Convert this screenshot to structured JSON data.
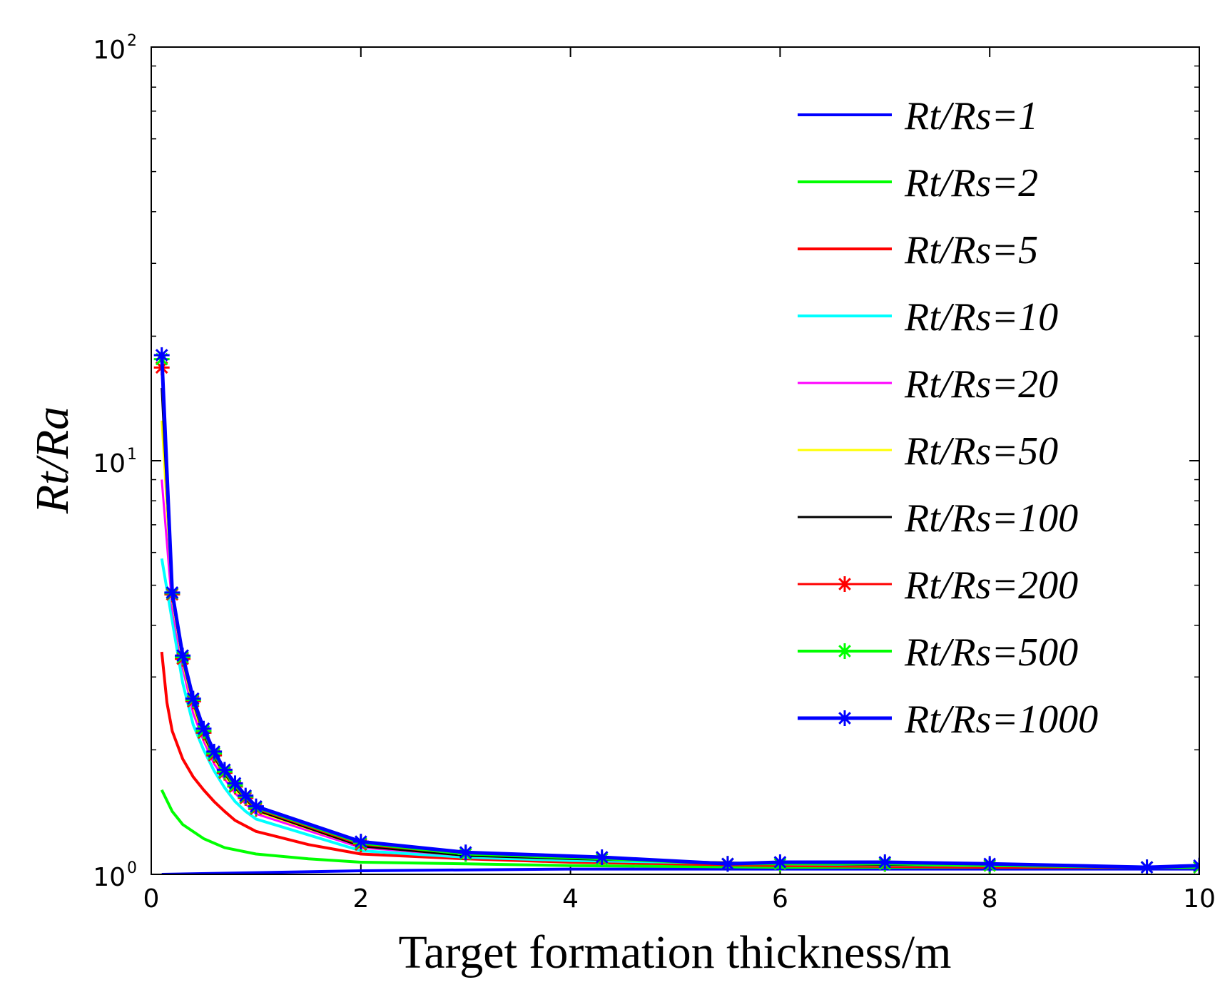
{
  "chart_data": {
    "type": "line",
    "title": "",
    "xlabel": "Target formation thickness/m",
    "ylabel": "Rt/Ra",
    "xlim": [
      0,
      10
    ],
    "ylim": [
      1,
      100
    ],
    "yscale": "log",
    "grid": false,
    "legend_position": "top-right",
    "x_ticks": [
      "0",
      "2",
      "4",
      "6",
      "8",
      "10"
    ],
    "y_ticks": [
      {
        "base": "10",
        "exp": "0"
      },
      {
        "base": "10",
        "exp": "1"
      },
      {
        "base": "10",
        "exp": "2"
      }
    ],
    "series": [
      {
        "name": "Rt/Rs=1",
        "color": "#0000ff",
        "marker": "none",
        "stroke": 4,
        "x": [
          0.1,
          2,
          4,
          6,
          8,
          10
        ],
        "y": [
          1.0,
          1.02,
          1.03,
          1.03,
          1.03,
          1.03
        ]
      },
      {
        "name": "Rt/Rs=2",
        "color": "#00ff00",
        "marker": "none",
        "stroke": 4,
        "x": [
          0.1,
          0.2,
          0.3,
          0.5,
          0.7,
          1.0,
          1.5,
          2,
          3,
          4,
          6,
          8,
          10
        ],
        "y": [
          1.6,
          1.42,
          1.32,
          1.22,
          1.16,
          1.12,
          1.09,
          1.07,
          1.06,
          1.05,
          1.04,
          1.04,
          1.04
        ]
      },
      {
        "name": "Rt/Rs=5",
        "color": "#ff0000",
        "marker": "none",
        "stroke": 4,
        "x": [
          0.1,
          0.15,
          0.2,
          0.3,
          0.4,
          0.5,
          0.6,
          0.7,
          0.8,
          1.0,
          1.5,
          2,
          3,
          4,
          6,
          8,
          10
        ],
        "y": [
          3.45,
          2.6,
          2.22,
          1.9,
          1.72,
          1.6,
          1.5,
          1.42,
          1.35,
          1.27,
          1.18,
          1.12,
          1.09,
          1.07,
          1.05,
          1.04,
          1.04
        ]
      },
      {
        "name": "Rt/Rs=10",
        "color": "#00ffff",
        "marker": "none",
        "stroke": 4,
        "x": [
          0.1,
          0.2,
          0.3,
          0.4,
          0.5,
          0.6,
          0.7,
          0.8,
          0.9,
          1.0,
          2,
          3,
          4,
          6,
          8,
          10
        ],
        "y": [
          5.8,
          4.1,
          2.9,
          2.3,
          2.0,
          1.78,
          1.62,
          1.5,
          1.42,
          1.36,
          1.14,
          1.1,
          1.08,
          1.06,
          1.05,
          1.04
        ]
      },
      {
        "name": "Rt/Rs=20",
        "color": "#ff00ff",
        "marker": "none",
        "stroke": 3,
        "x": [
          0.1,
          0.2,
          0.3,
          0.4,
          0.5,
          0.6,
          0.7,
          0.8,
          0.9,
          1.0,
          2,
          3,
          4,
          6,
          8,
          10
        ],
        "y": [
          9.0,
          4.4,
          3.15,
          2.45,
          2.1,
          1.85,
          1.7,
          1.57,
          1.48,
          1.4,
          1.16,
          1.11,
          1.09,
          1.06,
          1.05,
          1.04
        ]
      },
      {
        "name": "Rt/Rs=50",
        "color": "#ffff00",
        "marker": "none",
        "stroke": 3,
        "x": [
          0.1,
          0.2,
          0.3,
          0.4,
          0.5,
          0.6,
          0.7,
          0.8,
          0.9,
          1.0,
          2,
          3,
          4,
          6,
          8,
          10
        ],
        "y": [
          12.5,
          4.6,
          3.25,
          2.55,
          2.15,
          1.9,
          1.73,
          1.6,
          1.5,
          1.42,
          1.17,
          1.11,
          1.09,
          1.06,
          1.05,
          1.04
        ]
      },
      {
        "name": "Rt/Rs=100",
        "color": "#000000",
        "marker": "none",
        "stroke": 3,
        "x": [
          0.1,
          0.2,
          0.3,
          0.4,
          0.5,
          0.6,
          0.7,
          0.8,
          0.9,
          1.0,
          2,
          3,
          4,
          6,
          8,
          10
        ],
        "y": [
          15.0,
          4.7,
          3.3,
          2.6,
          2.18,
          1.92,
          1.75,
          1.62,
          1.52,
          1.43,
          1.17,
          1.11,
          1.09,
          1.06,
          1.05,
          1.04
        ]
      },
      {
        "name": "Rt/Rs=200",
        "color": "#ff0000",
        "marker": "star",
        "stroke": 3,
        "x": [
          0.1,
          0.2,
          0.3,
          0.4,
          0.5,
          0.6,
          0.7,
          0.8,
          0.9,
          1.0,
          2,
          3,
          4.3,
          5.5,
          6,
          7,
          8,
          9.5,
          10
        ],
        "y": [
          16.8,
          4.75,
          3.32,
          2.62,
          2.2,
          1.94,
          1.76,
          1.63,
          1.53,
          1.44,
          1.18,
          1.12,
          1.09,
          1.06,
          1.06,
          1.06,
          1.05,
          1.04,
          1.04
        ]
      },
      {
        "name": "Rt/Rs=500",
        "color": "#00ff00",
        "marker": "star",
        "stroke": 4,
        "x": [
          0.1,
          0.2,
          0.3,
          0.4,
          0.5,
          0.6,
          0.7,
          0.8,
          0.9,
          1.0,
          2,
          3,
          4.3,
          5.5,
          6,
          7,
          8,
          9.5,
          10
        ],
        "y": [
          17.6,
          4.78,
          3.35,
          2.64,
          2.22,
          1.96,
          1.77,
          1.64,
          1.54,
          1.45,
          1.19,
          1.12,
          1.09,
          1.06,
          1.06,
          1.06,
          1.05,
          1.04,
          1.04
        ]
      },
      {
        "name": "Rt/Rs=1000",
        "color": "#0000ff",
        "marker": "star",
        "stroke": 5,
        "x": [
          0.1,
          0.2,
          0.3,
          0.4,
          0.5,
          0.6,
          0.7,
          0.8,
          0.9,
          1.0,
          2,
          3,
          4.3,
          5.5,
          6,
          7,
          8,
          9.5,
          10
        ],
        "y": [
          18.0,
          4.8,
          3.38,
          2.66,
          2.25,
          1.98,
          1.79,
          1.66,
          1.55,
          1.46,
          1.2,
          1.13,
          1.1,
          1.06,
          1.07,
          1.07,
          1.06,
          1.04,
          1.05
        ]
      }
    ]
  }
}
